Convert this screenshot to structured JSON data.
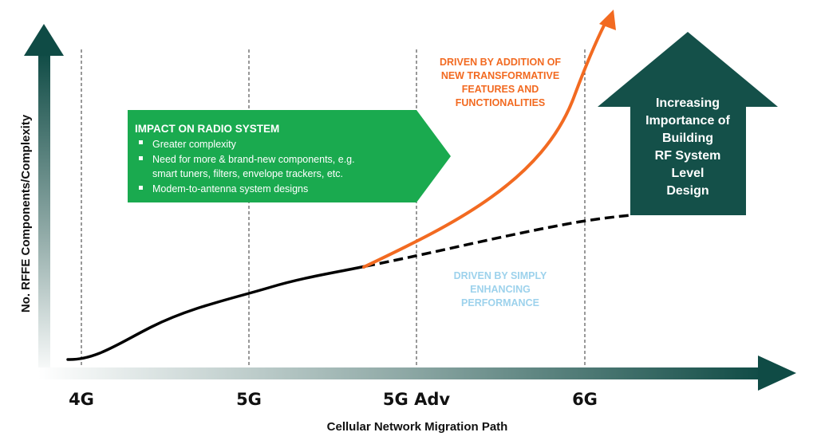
{
  "y_axis_label": "No. RFFE Components/Complexity",
  "x_axis_label": "Cellular Network Migration Path",
  "stages": [
    "4G",
    "5G",
    "5G Adv",
    "6G"
  ],
  "impact_box": {
    "title": "IMPACT ON RADIO SYSTEM",
    "bullets": [
      "Greater complexity",
      "Need for more & brand-new components, e.g.",
      "smart tuners, filters, envelope trackers, etc.",
      "Modem-to-antenna system designs"
    ]
  },
  "transformative_label": [
    "DRIVEN BY ADDITION OF",
    "NEW TRANSFORMATIVE",
    "FEATURES AND",
    "FUNCTIONALITIES"
  ],
  "enhancing_label": [
    "DRIVEN BY SIMPLY",
    "ENHANCING",
    "PERFORMANCE"
  ],
  "importance_arrow": [
    "Increasing",
    "Importance of",
    "Building",
    "RF System",
    "Level",
    "Design"
  ],
  "colors": {
    "axis_dark": "#0f4b45",
    "green_box": "#1aaa4f",
    "orange": "#f26a21",
    "light_blue": "#9dd2ec",
    "importance_arrow": "#145049",
    "curve": "#000000"
  }
}
